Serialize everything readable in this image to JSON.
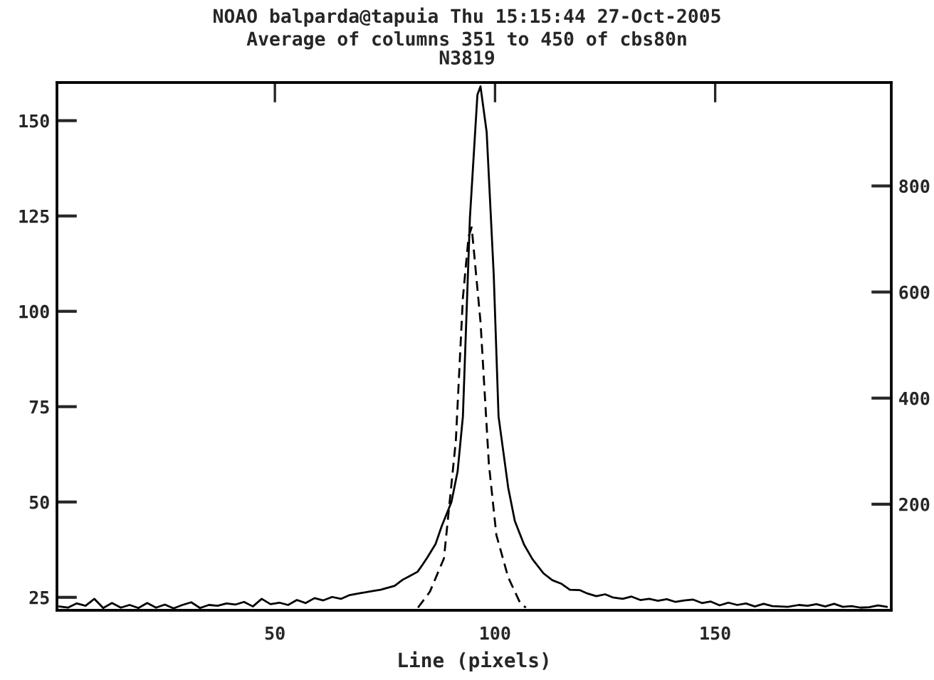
{
  "chart_data": {
    "type": "line",
    "title": "NOAO balparda@tapuia Thu 15:15:44 27-Oct-2005",
    "subtitle": "Average of columns 351 to 450 of cbs80n\nN3819",
    "xlabel": "Line (pixels)",
    "series": [
      {
        "color": "#000000",
        "line_style": "solid",
        "x": [
          1,
          3,
          5,
          7,
          9,
          11,
          13,
          15,
          17,
          19,
          21,
          23,
          25,
          27,
          29,
          31,
          33,
          35,
          37,
          39,
          41,
          43,
          45,
          47,
          49,
          51,
          53,
          55,
          57,
          59,
          61,
          63,
          65,
          67,
          69.4,
          72,
          74,
          77.2,
          79,
          80.5,
          82.4,
          83.5,
          84.6,
          86.5,
          87.9,
          90.1,
          91.5,
          92.7,
          94.3,
          96,
          96.7,
          98.1,
          99.7,
          100.8,
          103,
          104.5,
          106.6,
          108.5,
          111,
          113,
          115,
          117,
          119.2,
          121,
          123,
          125,
          126.7,
          129,
          131,
          133,
          135,
          137,
          139,
          141,
          143,
          145,
          147,
          149,
          151,
          153,
          155,
          157,
          159,
          161,
          163,
          166.5,
          169,
          171,
          173,
          175,
          177,
          179,
          181,
          183,
          185,
          187,
          189
        ],
        "values": [
          22.6,
          22.3,
          23.4,
          22.8,
          24.6,
          22.2,
          23.5,
          22.3,
          23.0,
          22.2,
          23.5,
          22.3,
          23.1,
          22.1,
          23.0,
          23.7,
          22.2,
          23.0,
          22.8,
          23.4,
          23.1,
          23.8,
          22.6,
          24.6,
          23.2,
          23.6,
          23.0,
          24.3,
          23.5,
          24.8,
          24.2,
          25.1,
          24.6,
          25.6,
          26.1,
          26.6,
          27.0,
          28.0,
          29.6,
          30.5,
          31.7,
          33.5,
          35.4,
          39.0,
          43.7,
          50.0,
          58.0,
          72.4,
          124.6,
          156.8,
          159.0,
          147.0,
          109.7,
          72.4,
          53.7,
          45.0,
          38.8,
          35.0,
          31.3,
          29.5,
          28.6,
          27.0,
          26.9,
          26.0,
          25.3,
          25.8,
          25.0,
          24.6,
          25.2,
          24.3,
          24.6,
          24.1,
          24.5,
          23.8,
          24.2,
          24.4,
          23.5,
          23.9,
          22.9,
          23.6,
          23.0,
          23.4,
          22.6,
          23.3,
          22.7,
          22.5,
          23.0,
          22.8,
          23.2,
          22.6,
          23.3,
          22.5,
          22.7,
          22.3,
          22.4,
          22.9,
          22.5
        ]
      },
      {
        "color": "#000000",
        "line_style": "dashed",
        "axis": "y2",
        "x": [
          82.5,
          85.2,
          88.4,
          91.1,
          92.7,
          94.0,
          94.7,
          96.7,
          98.6,
          100.3,
          103,
          105.7,
          107
        ],
        "values": [
          5,
          35,
          98,
          320,
          589,
          705,
          722,
          544,
          276,
          142,
          62,
          14,
          5
        ]
      }
    ],
    "xlim": [
      0.5,
      190
    ],
    "xticks": [
      50,
      100,
      150
    ],
    "ylim": [
      21.6,
      160
    ],
    "yticks": [
      25,
      50,
      75,
      100,
      125,
      150
    ],
    "y2lim": [
      0,
      995
    ],
    "y2ticks": [
      200,
      400,
      600,
      800
    ],
    "grid": false,
    "legend": false
  }
}
